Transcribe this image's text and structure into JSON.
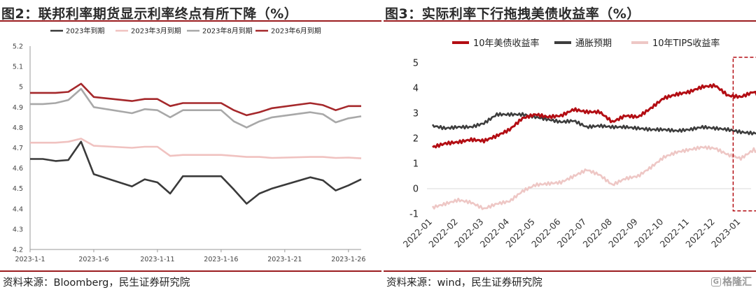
{
  "left": {
    "title": "图2：联邦利率期货显示利率终点有所下降（%）",
    "source": "资料来源：Bloomberg，民生证券研究院"
  },
  "right": {
    "title": "图3：实际利率下行拖拽美债收益率（%）",
    "source": "资料来源：wind，民生证券研究院"
  },
  "watermark": {
    "icon": "G",
    "text": "格隆汇"
  },
  "colors": {
    "accent_rule": "#9b1d20",
    "s_2023_dec": "#3a3a3a",
    "s_2023_mar": "#f0c2c0",
    "s_2023_aug": "#a8a8a8",
    "s_2023_jun": "#a5282b",
    "s_10y": "#b30d13",
    "s_infl": "#3d3d3d",
    "s_tips": "#eec7c5"
  },
  "chart_data": [
    {
      "type": "line",
      "title": "图2：联邦利率期货显示利率终点有所下降（%）",
      "x": [
        "2023-1-1",
        "2023-1-2",
        "2023-1-3",
        "2023-1-4",
        "2023-1-5",
        "2023-1-6",
        "2023-1-9",
        "2023-1-10",
        "2023-1-11",
        "2023-1-12",
        "2023-1-13",
        "2023-1-16",
        "2023-1-17",
        "2023-1-18",
        "2023-1-19",
        "2023-1-20",
        "2023-1-23",
        "2023-1-24",
        "2023-1-25",
        "2023-1-26",
        "2023-1-27"
      ],
      "x_day": [
        1,
        2,
        3,
        4,
        5,
        6,
        9,
        10,
        11,
        12,
        13,
        16,
        17,
        18,
        19,
        20,
        23,
        24,
        25,
        26,
        27
      ],
      "xticks": [
        "2023-1-1",
        "2023-1-6",
        "2023-1-11",
        "2023-1-16",
        "2023-1-21",
        "2023-1-26"
      ],
      "xtick_days": [
        1,
        6,
        11,
        16,
        21,
        26
      ],
      "ylim": [
        4.2,
        5.2
      ],
      "yticks": [
        "4.2",
        "4.3",
        "4.4",
        "4.5",
        "4.6",
        "4.7",
        "4.8",
        "4.9",
        "5",
        "5.1",
        "5.2"
      ],
      "grid": false,
      "legend_position": "top",
      "series": [
        {
          "name": "2023年到期",
          "color_key": "s_2023_dec",
          "values": [
            4.645,
            4.645,
            4.635,
            4.64,
            4.73,
            4.57,
            4.51,
            4.545,
            4.53,
            4.475,
            4.56,
            4.56,
            4.495,
            4.425,
            4.475,
            4.5,
            4.555,
            4.54,
            4.49,
            4.515,
            4.545
          ]
        },
        {
          "name": "2023年3月到期",
          "color_key": "s_2023_mar",
          "values": [
            4.725,
            4.725,
            4.725,
            4.73,
            4.745,
            4.71,
            4.7,
            4.705,
            4.705,
            4.66,
            4.665,
            4.665,
            4.66,
            4.655,
            4.655,
            4.65,
            4.655,
            4.655,
            4.65,
            4.652,
            4.648
          ]
        },
        {
          "name": "2023年8月到期",
          "color_key": "s_2023_aug",
          "values": [
            4.915,
            4.915,
            4.92,
            4.935,
            4.99,
            4.9,
            4.87,
            4.89,
            4.885,
            4.85,
            4.885,
            4.885,
            4.83,
            4.8,
            4.83,
            4.85,
            4.875,
            4.865,
            4.825,
            4.845,
            4.855
          ]
        },
        {
          "name": "2023年6月到期",
          "color_key": "s_2023_jun",
          "values": [
            4.97,
            4.97,
            4.97,
            4.975,
            5.015,
            4.95,
            4.93,
            4.94,
            4.94,
            4.905,
            4.92,
            4.92,
            4.885,
            4.86,
            4.875,
            4.895,
            4.92,
            4.91,
            4.885,
            4.905,
            4.905
          ]
        }
      ]
    },
    {
      "type": "line",
      "title": "图3：实际利率下行拖拽美债收益率（%）",
      "xticks": [
        "2022-01",
        "2022-02",
        "2022-03",
        "2022-04",
        "2022-05",
        "2022-06",
        "2022-07",
        "2022-08",
        "2022-09",
        "2022-10",
        "2022-11",
        "2022-12",
        "2023-01"
      ],
      "ylim": [
        -1,
        5
      ],
      "yticks": [
        "-1",
        "0",
        "1",
        "2",
        "3",
        "4",
        "5"
      ],
      "grid": false,
      "legend_position": "top",
      "highlight": "dashed red box over 2023-01",
      "x_month": [
        0,
        0.5,
        1,
        1.5,
        2,
        2.5,
        3,
        3.5,
        4,
        4.5,
        5,
        5.5,
        6,
        6.5,
        7,
        7.5,
        8,
        8.5,
        9,
        9.5,
        10,
        10.5,
        11,
        11.5,
        12,
        12.5,
        13,
        13.4
      ],
      "series": [
        {
          "name": "10年美债收益率",
          "color_key": "s_10y",
          "values": [
            1.65,
            1.8,
            1.85,
            1.95,
            1.9,
            2.1,
            2.35,
            2.8,
            2.95,
            2.85,
            2.9,
            3.15,
            3.05,
            3.05,
            2.65,
            2.9,
            2.85,
            3.2,
            3.6,
            3.75,
            3.85,
            4.05,
            4.1,
            3.7,
            3.65,
            3.85,
            3.5,
            3.5
          ]
        },
        {
          "name": "通胀预期",
          "color_key": "s_infl",
          "values": [
            2.5,
            2.4,
            2.45,
            2.45,
            2.6,
            2.95,
            2.95,
            2.95,
            2.85,
            2.75,
            2.65,
            2.7,
            2.45,
            2.5,
            2.45,
            2.45,
            2.4,
            2.35,
            2.35,
            2.3,
            2.35,
            2.45,
            2.4,
            2.35,
            2.25,
            2.2,
            2.25,
            2.3
          ]
        },
        {
          "name": "10年TIPS收益率",
          "color_key": "s_tips",
          "values": [
            -0.75,
            -0.6,
            -0.45,
            -0.55,
            -0.8,
            -0.6,
            -0.5,
            -0.1,
            0.15,
            0.2,
            0.25,
            0.5,
            0.75,
            0.55,
            0.15,
            0.4,
            0.5,
            0.85,
            1.25,
            1.45,
            1.55,
            1.65,
            1.6,
            1.35,
            1.2,
            1.55,
            1.25,
            1.2
          ]
        }
      ]
    }
  ]
}
